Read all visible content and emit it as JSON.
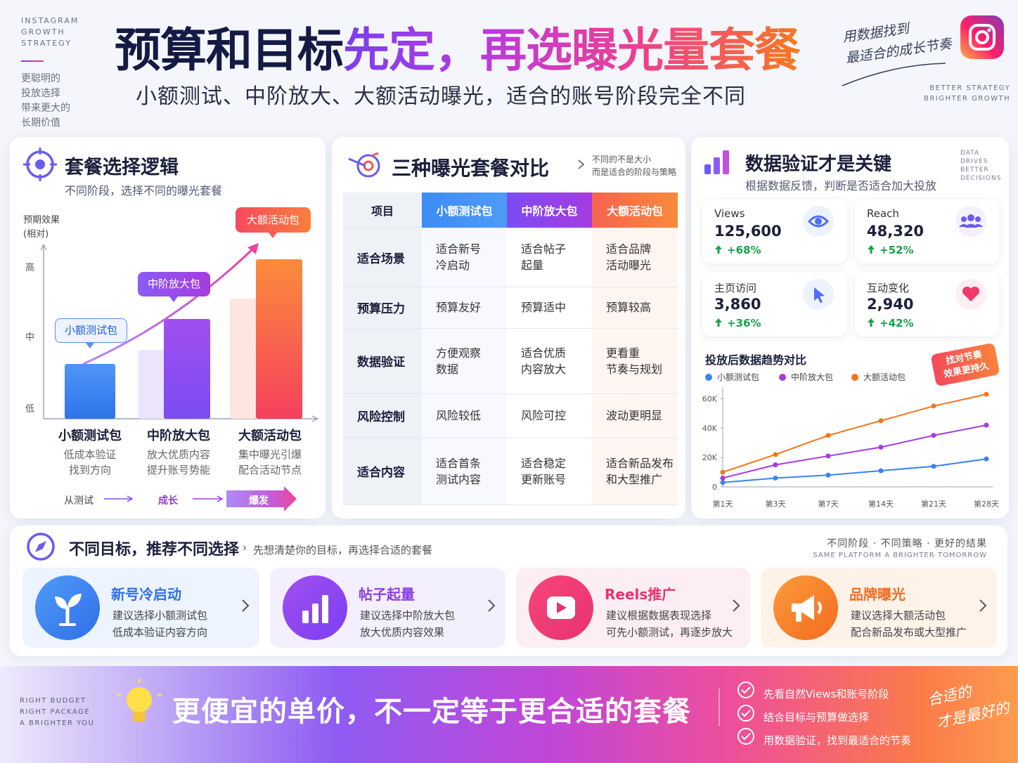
{
  "header": {
    "side_label": [
      "INSTAGRAM",
      "GROWTH",
      "STRATEGY"
    ],
    "side_note": [
      "更聪明的",
      "投放选择",
      "带来更大的",
      "长期价值"
    ],
    "title_a": "预算和目标",
    "title_b": "先定，再选曝光量套餐",
    "subtitle": "小额测试、中阶放大、大额活动曝光，适合的账号阶段完全不同",
    "handwriting": [
      "用数据找到",
      "最适合的成长节奏"
    ],
    "tagline": [
      "BETTER STRATEGY",
      "BRIGHTER GROWTH"
    ]
  },
  "logic": {
    "title": "套餐选择逻辑",
    "subtitle": "不同阶段，选择不同的曝光套餐",
    "axis_label": [
      "预期效果",
      "(相对)"
    ],
    "levels": [
      "高",
      "中",
      "低"
    ],
    "bubbles": [
      "小额测试包",
      "中阶放大包",
      "大额活动包"
    ],
    "packages": [
      {
        "name": "小额测试包",
        "desc": [
          "低成本验证",
          "找到方向"
        ]
      },
      {
        "name": "中阶放大包",
        "desc": [
          "放大优质内容",
          "提升账号势能"
        ]
      },
      {
        "name": "大额活动包",
        "desc": [
          "集中曝光引爆",
          "配合活动节点"
        ]
      }
    ],
    "flow": [
      "从测试",
      "成长",
      "爆发"
    ]
  },
  "comparison": {
    "title": "三种曝光套餐对比",
    "note": [
      "不同的不是大小",
      "而是适合的阶段与策略"
    ],
    "header": [
      "项目",
      "小额测试包",
      "中阶放大包",
      "大额活动包"
    ],
    "rows": [
      [
        "适合场景",
        "适合新号\n冷启动",
        "适合帖子\n起量",
        "适合品牌\n活动曝光"
      ],
      [
        "预算压力",
        "预算友好",
        "预算适中",
        "预算较高"
      ],
      [
        "数据验证",
        "方便观察\n数据",
        "适合优质\n内容放大",
        "更看重\n节奏与规划"
      ],
      [
        "风险控制",
        "风险较低",
        "风险可控",
        "波动更明显"
      ],
      [
        "适合内容",
        "适合首条\n测试内容",
        "适合稳定\n更新账号",
        "适合新品发布\n和大型推广"
      ]
    ]
  },
  "metrics": {
    "title": "数据验证才是关键",
    "subtitle": "根据数据反馈，判断是否适合加大投放",
    "side": [
      "DATA",
      "DRIVES",
      "BETTER",
      "DECISIONS"
    ],
    "cards": [
      {
        "label": "Views",
        "value": "125,600",
        "change": "+68%"
      },
      {
        "label": "Reach",
        "value": "48,320",
        "change": "+52%"
      },
      {
        "label": "主页访问",
        "value": "3,860",
        "change": "+36%"
      },
      {
        "label": "互动变化",
        "value": "2,940",
        "change": "+42%"
      }
    ]
  },
  "chart_data": {
    "type": "line",
    "title": "投放后数据趋势对比",
    "annotation": [
      "找对节奏",
      "效果更持久"
    ],
    "categories": [
      "第1天",
      "第3天",
      "第7天",
      "第14天",
      "第21天",
      "第28天"
    ],
    "series": [
      {
        "name": "小额测试包",
        "color": "#3b82f6",
        "values": [
          3000,
          6000,
          8000,
          11000,
          14000,
          19000
        ]
      },
      {
        "name": "中阶放大包",
        "color": "#a53be0",
        "values": [
          6000,
          15000,
          21000,
          27000,
          35000,
          42000
        ]
      },
      {
        "name": "大额活动包",
        "color": "#f97316",
        "values": [
          10000,
          22000,
          35000,
          45000,
          55000,
          63000
        ]
      }
    ],
    "ylim": [
      0,
      65000
    ],
    "yticks": [
      0,
      {
        "value": 20000,
        "label": "20K"
      },
      {
        "value": 40000,
        "label": "40K"
      },
      {
        "value": 60000,
        "label": "60K"
      }
    ]
  },
  "goals": {
    "title": "不同目标，推荐不同选择",
    "subtitle": "先想清楚你的目标，再选择合适的套餐",
    "right": "不同阶段 · 不同策略 · 更好的结果",
    "right_en": "SAME PLATFORM  A BRIGHTER TOMORROW",
    "cards": [
      {
        "title": "新号冷启动",
        "lines": [
          "建议选择小额测试包",
          "低成本验证内容方向"
        ]
      },
      {
        "title": "帖子起量",
        "lines": [
          "建议选择中阶放大包",
          "放大优质内容效果"
        ]
      },
      {
        "title": "Reels推广",
        "lines": [
          "建议根据数据表现选择",
          "可先小额测试，再逐步放大"
        ]
      },
      {
        "title": "品牌曝光",
        "lines": [
          "建议选择大额活动包",
          "配合新品发布或大型推广"
        ]
      }
    ]
  },
  "footer": {
    "side": [
      "RIGHT BUDGET",
      "RIGHT PACKAGE",
      "A BRIGHTER YOU"
    ],
    "headline": "更便宜的单价，不一定等于更合适的套餐",
    "checks": [
      "先看自然Views和账号阶段",
      "结合目标与预算做选择",
      "用数据验证，找到最适合的节奏"
    ],
    "handwriting": [
      "合适的",
      "才是最好的"
    ]
  }
}
